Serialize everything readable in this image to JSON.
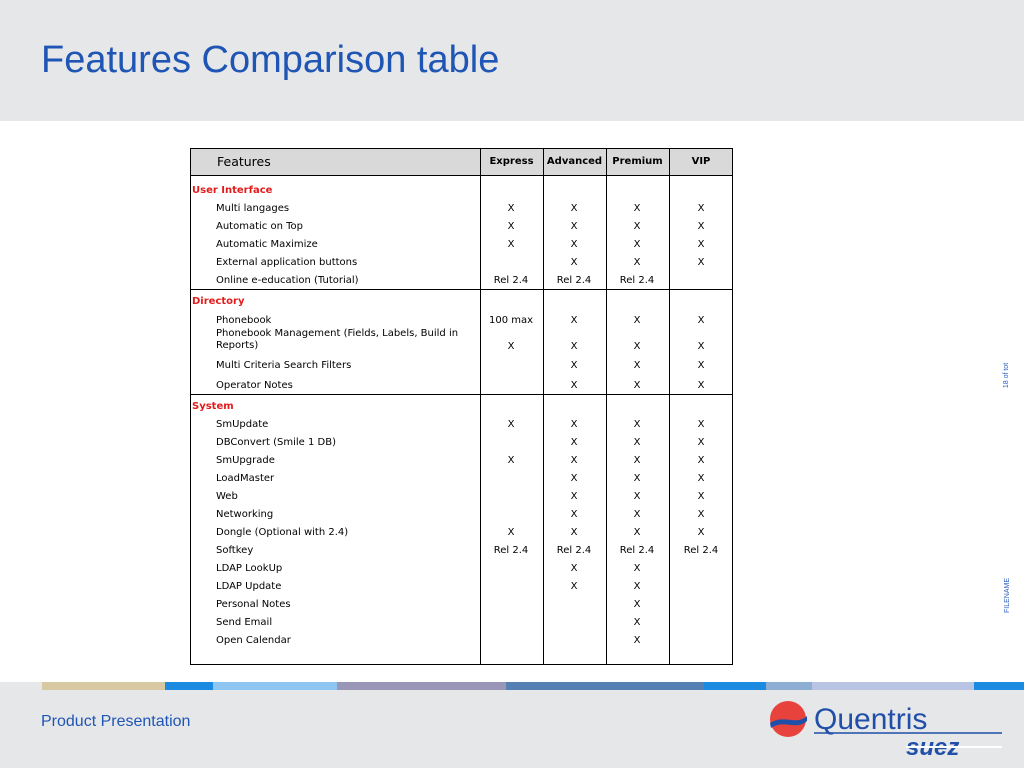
{
  "slide": {
    "title": "Features Comparison table",
    "footer": "Product Presentation",
    "side_page": "18 of tot",
    "side_filename": "FILENAME"
  },
  "brand": {
    "name_top": "Quentris",
    "name_bottom": "suez",
    "colors": {
      "title_blue": "#1f55b4",
      "section_red": "#e31b1b",
      "header_gray": "#d9d9d9",
      "logo_red": "#e8423c",
      "logo_blue": "#1f4fa8"
    }
  },
  "table": {
    "headers": {
      "feature": "Features",
      "columns": [
        "Express",
        "Advanced",
        "Premium",
        "VIP"
      ]
    },
    "sections": [
      {
        "name": "User Interface",
        "rows": [
          {
            "label": "Multi langages",
            "values": [
              "X",
              "X",
              "X",
              "X"
            ]
          },
          {
            "label": "Automatic on Top",
            "values": [
              "X",
              "X",
              "X",
              "X"
            ]
          },
          {
            "label": "Automatic Maximize",
            "values": [
              "X",
              "X",
              "X",
              "X"
            ]
          },
          {
            "label": "External application buttons",
            "values": [
              "",
              "X",
              "X",
              "X"
            ]
          },
          {
            "label": "Online e-education (Tutorial)",
            "values": [
              "Rel 2.4",
              "Rel 2.4",
              "Rel 2.4",
              ""
            ]
          }
        ]
      },
      {
        "name": "Directory",
        "rows": [
          {
            "label": "Phonebook",
            "values": [
              "100 max",
              "X",
              "X",
              "X"
            ]
          },
          {
            "label": "Phonebook Management (Fields, Labels, Build in Reports)",
            "values": [
              "X",
              "X",
              "X",
              "X"
            ]
          },
          {
            "label": "Multi Criteria Search Filters",
            "values": [
              "",
              "X",
              "X",
              "X"
            ]
          },
          {
            "label": "Operator Notes",
            "values": [
              "",
              "X",
              "X",
              "X"
            ]
          }
        ]
      },
      {
        "name": "System",
        "rows": [
          {
            "label": "SmUpdate",
            "values": [
              "X",
              "X",
              "X",
              "X"
            ]
          },
          {
            "label": "DBConvert (Smile 1 DB)",
            "values": [
              "",
              "X",
              "X",
              "X"
            ]
          },
          {
            "label": "SmUpgrade",
            "values": [
              "X",
              "X",
              "X",
              "X"
            ]
          },
          {
            "label": "LoadMaster",
            "values": [
              "",
              "X",
              "X",
              "X"
            ]
          },
          {
            "label": "Web",
            "values": [
              "",
              "X",
              "X",
              "X"
            ]
          },
          {
            "label": "Networking",
            "values": [
              "",
              "X",
              "X",
              "X"
            ]
          },
          {
            "label": "Dongle (Optional with 2.4)",
            "values": [
              "X",
              "X",
              "X",
              "X"
            ]
          },
          {
            "label": "Softkey",
            "values": [
              "Rel 2.4",
              "Rel 2.4",
              "Rel 2.4",
              "Rel 2.4"
            ]
          },
          {
            "label": "LDAP LookUp",
            "values": [
              "",
              "X",
              "X",
              ""
            ]
          },
          {
            "label": "LDAP Update",
            "values": [
              "",
              "X",
              "X",
              ""
            ]
          },
          {
            "label": "Personal Notes",
            "values": [
              "",
              "",
              "X",
              ""
            ]
          },
          {
            "label": "Send Email",
            "values": [
              "",
              "",
              "X",
              ""
            ]
          },
          {
            "label": "Open Calendar",
            "values": [
              "",
              "",
              "X",
              ""
            ]
          }
        ]
      }
    ]
  }
}
